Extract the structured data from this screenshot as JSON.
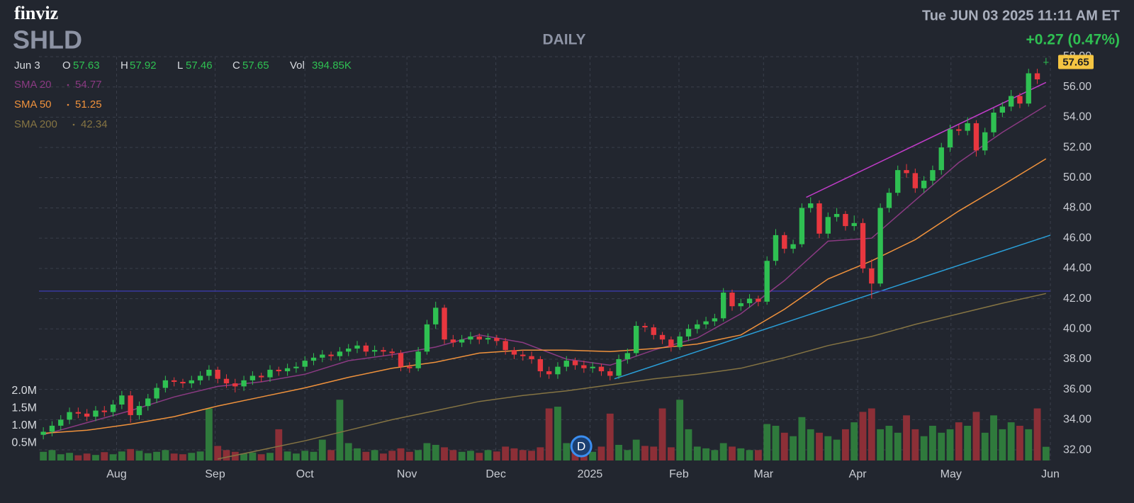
{
  "brand": "finviz",
  "timestamp": "Tue JUN 03 2025 11:11 AM ET",
  "chart_data": {
    "type": "candlestick",
    "ticker": "SHLD",
    "period": "DAILY",
    "change": "+0.27 (0.47%)",
    "ohlc_legend": {
      "date": "Jun 3",
      "open_label": "O",
      "open": 57.63,
      "high_label": "H",
      "high": 57.92,
      "low_label": "L",
      "low": 57.46,
      "close_label": "C",
      "close": 57.65,
      "volume_label": "Vol",
      "volume": "394.85K"
    },
    "up_color": "#2fc052",
    "down_color": "#e8373f",
    "volume_up_color": "#2f7a3c",
    "volume_down_color": "#8c2f37",
    "candles": [
      [
        33.0,
        33.5,
        32.7,
        33.2
      ],
      [
        33.2,
        33.9,
        32.9,
        33.6
      ],
      [
        33.6,
        34.3,
        33.3,
        34.0
      ],
      [
        34.0,
        34.8,
        33.7,
        34.5
      ],
      [
        34.5,
        34.8,
        34.1,
        34.4
      ],
      [
        34.4,
        34.7,
        33.9,
        34.2
      ],
      [
        34.2,
        34.9,
        33.9,
        34.6
      ],
      [
        34.6,
        34.9,
        34.2,
        34.5
      ],
      [
        34.5,
        35.3,
        34.2,
        35.0
      ],
      [
        35.0,
        35.9,
        34.7,
        35.6
      ],
      [
        35.6,
        35.9,
        33.8,
        34.3
      ],
      [
        34.3,
        35.2,
        34.0,
        34.9
      ],
      [
        34.9,
        35.7,
        34.6,
        35.4
      ],
      [
        35.4,
        36.4,
        35.1,
        36.1
      ],
      [
        36.1,
        36.9,
        35.8,
        36.6
      ],
      [
        36.6,
        36.8,
        36.2,
        36.5
      ],
      [
        36.5,
        36.7,
        36.1,
        36.4
      ],
      [
        36.4,
        36.9,
        36.1,
        36.6
      ],
      [
        36.6,
        37.2,
        36.3,
        36.9
      ],
      [
        36.9,
        37.6,
        36.6,
        37.3
      ],
      [
        37.3,
        37.5,
        36.4,
        36.7
      ],
      [
        36.7,
        37.0,
        36.1,
        36.4
      ],
      [
        36.4,
        36.7,
        35.8,
        36.2
      ],
      [
        36.2,
        36.9,
        35.9,
        36.6
      ],
      [
        36.6,
        37.2,
        36.3,
        36.9
      ],
      [
        36.9,
        37.1,
        36.5,
        36.8
      ],
      [
        36.8,
        37.6,
        36.5,
        37.3
      ],
      [
        37.3,
        37.5,
        36.9,
        37.2
      ],
      [
        37.2,
        37.7,
        36.9,
        37.4
      ],
      [
        37.4,
        37.8,
        37.1,
        37.5
      ],
      [
        37.5,
        38.2,
        37.2,
        37.9
      ],
      [
        37.9,
        38.4,
        37.6,
        38.1
      ],
      [
        38.1,
        38.6,
        37.8,
        38.3
      ],
      [
        38.3,
        38.5,
        37.9,
        38.2
      ],
      [
        38.2,
        38.8,
        37.9,
        38.5
      ],
      [
        38.5,
        39.0,
        38.2,
        38.7
      ],
      [
        38.7,
        39.2,
        38.4,
        38.9
      ],
      [
        38.9,
        39.1,
        38.2,
        38.5
      ],
      [
        38.5,
        38.9,
        38.2,
        38.6
      ],
      [
        38.6,
        38.8,
        38.2,
        38.5
      ],
      [
        38.5,
        38.7,
        38.1,
        38.4
      ],
      [
        38.4,
        38.6,
        37.2,
        37.5
      ],
      [
        37.5,
        37.8,
        37.1,
        37.4
      ],
      [
        37.4,
        38.8,
        37.2,
        38.5
      ],
      [
        38.5,
        40.6,
        38.3,
        40.3
      ],
      [
        40.3,
        41.8,
        40.0,
        41.4
      ],
      [
        41.4,
        41.6,
        39.0,
        39.3
      ],
      [
        39.3,
        39.6,
        38.8,
        39.1
      ],
      [
        39.1,
        39.6,
        38.8,
        39.3
      ],
      [
        39.3,
        39.8,
        39.0,
        39.5
      ],
      [
        39.5,
        39.7,
        39.0,
        39.3
      ],
      [
        39.3,
        39.7,
        39.0,
        39.4
      ],
      [
        39.4,
        39.6,
        38.9,
        39.2
      ],
      [
        39.2,
        39.4,
        38.3,
        38.6
      ],
      [
        38.6,
        38.8,
        38.0,
        38.3
      ],
      [
        38.3,
        38.6,
        37.9,
        38.2
      ],
      [
        38.2,
        38.5,
        37.7,
        38.0
      ],
      [
        38.0,
        38.2,
        36.8,
        37.2
      ],
      [
        37.2,
        37.5,
        36.7,
        37.0
      ],
      [
        37.0,
        37.8,
        36.7,
        37.5
      ],
      [
        37.5,
        38.2,
        37.2,
        37.9
      ],
      [
        37.9,
        38.1,
        37.3,
        37.6
      ],
      [
        37.6,
        37.9,
        37.1,
        37.4
      ],
      [
        37.4,
        37.8,
        37.1,
        37.5
      ],
      [
        37.5,
        37.7,
        36.9,
        37.2
      ],
      [
        37.2,
        37.4,
        36.6,
        36.9
      ],
      [
        36.9,
        38.3,
        36.7,
        38.0
      ],
      [
        38.0,
        38.7,
        37.7,
        38.4
      ],
      [
        38.4,
        40.5,
        38.2,
        40.2
      ],
      [
        40.2,
        40.4,
        39.8,
        40.1
      ],
      [
        40.1,
        40.3,
        39.3,
        39.6
      ],
      [
        39.6,
        39.8,
        39.0,
        39.3
      ],
      [
        39.3,
        39.5,
        38.5,
        38.8
      ],
      [
        38.8,
        39.8,
        38.6,
        39.5
      ],
      [
        39.5,
        40.3,
        39.2,
        40.0
      ],
      [
        40.0,
        40.6,
        39.7,
        40.3
      ],
      [
        40.3,
        40.8,
        40.0,
        40.5
      ],
      [
        40.5,
        41.0,
        40.2,
        40.7
      ],
      [
        40.7,
        42.7,
        40.5,
        42.4
      ],
      [
        42.4,
        42.6,
        41.2,
        41.5
      ],
      [
        41.5,
        42.0,
        41.2,
        41.7
      ],
      [
        41.7,
        42.3,
        41.4,
        42.0
      ],
      [
        42.0,
        42.2,
        41.5,
        41.8
      ],
      [
        41.8,
        44.8,
        41.6,
        44.5
      ],
      [
        44.5,
        46.6,
        44.2,
        46.2
      ],
      [
        46.2,
        46.4,
        45.0,
        45.3
      ],
      [
        45.3,
        45.9,
        45.0,
        45.6
      ],
      [
        45.6,
        48.3,
        45.4,
        48.0
      ],
      [
        48.0,
        48.7,
        47.7,
        48.3
      ],
      [
        48.3,
        48.5,
        46.0,
        46.3
      ],
      [
        46.3,
        47.7,
        46.0,
        47.4
      ],
      [
        47.4,
        48.0,
        47.1,
        47.6
      ],
      [
        47.6,
        47.8,
        46.5,
        46.8
      ],
      [
        46.8,
        47.5,
        46.5,
        47.0
      ],
      [
        47.0,
        47.3,
        43.7,
        44.0
      ],
      [
        44.0,
        44.6,
        42.0,
        43.0
      ],
      [
        43.0,
        48.3,
        42.8,
        48.0
      ],
      [
        48.0,
        49.3,
        47.7,
        49.0
      ],
      [
        49.0,
        50.8,
        48.8,
        50.5
      ],
      [
        50.5,
        50.9,
        50.0,
        50.3
      ],
      [
        50.3,
        50.6,
        49.0,
        49.3
      ],
      [
        49.3,
        50.1,
        49.0,
        49.8
      ],
      [
        49.8,
        50.8,
        49.5,
        50.5
      ],
      [
        50.5,
        52.3,
        50.2,
        52.0
      ],
      [
        52.0,
        53.5,
        51.7,
        53.2
      ],
      [
        53.2,
        53.5,
        52.8,
        53.1
      ],
      [
        53.1,
        54.0,
        52.8,
        53.6
      ],
      [
        53.6,
        53.8,
        51.4,
        51.8
      ],
      [
        51.8,
        53.3,
        51.5,
        53.0
      ],
      [
        53.0,
        54.6,
        52.7,
        54.3
      ],
      [
        54.3,
        55.0,
        54.0,
        54.7
      ],
      [
        54.7,
        55.8,
        54.4,
        55.4
      ],
      [
        55.4,
        55.6,
        54.6,
        54.9
      ],
      [
        54.9,
        57.2,
        54.7,
        56.9
      ],
      [
        56.9,
        57.2,
        56.2,
        56.5
      ],
      [
        57.63,
        57.92,
        57.46,
        57.65
      ]
    ],
    "volumes": [
      250000,
      300000,
      180000,
      220000,
      150000,
      200000,
      160000,
      240000,
      180000,
      260000,
      330000,
      280000,
      210000,
      250000,
      300000,
      200000,
      180000,
      220000,
      260000,
      1500000,
      420000,
      300000,
      250000,
      200000,
      230000,
      180000,
      220000,
      900000,
      260000,
      200000,
      280000,
      250000,
      600000,
      300000,
      1750000,
      500000,
      350000,
      250000,
      300000,
      200000,
      280000,
      350000,
      250000,
      300000,
      500000,
      450000,
      380000,
      300000,
      250000,
      280000,
      220000,
      300000,
      260000,
      400000,
      350000,
      300000,
      280000,
      380000,
      1500000,
      1550000,
      500000,
      350000,
      300000,
      250000,
      400000,
      1350000,
      450000,
      300000,
      600000,
      420000,
      400000,
      1500000,
      380000,
      1750000,
      900000,
      400000,
      350000,
      300000,
      500000,
      400000,
      350000,
      300000,
      300000,
      1050000,
      1000000,
      800000,
      700000,
      1250000,
      900000,
      800000,
      700000,
      600000,
      900000,
      1100000,
      1400000,
      1500000,
      900000,
      1000000,
      800000,
      1300000,
      900000,
      700000,
      1000000,
      800000,
      900000,
      1100000,
      1000000,
      1400000,
      800000,
      1300000,
      900000,
      1100000,
      1000000,
      900000,
      1500000,
      394850
    ],
    "xlim": [
      -0.5,
      115.5
    ],
    "xticks": [
      {
        "value": 8.4,
        "label": "Aug"
      },
      {
        "value": 19.7,
        "label": "Sep"
      },
      {
        "value": 30,
        "label": "Oct"
      },
      {
        "value": 41.7,
        "label": "Nov"
      },
      {
        "value": 51.9,
        "label": "Dec"
      },
      {
        "value": 62.7,
        "label": "2025"
      },
      {
        "value": 72.9,
        "label": "Feb"
      },
      {
        "value": 82.6,
        "label": "Mar"
      },
      {
        "value": 93.4,
        "label": "Apr"
      },
      {
        "value": 104.1,
        "label": "May"
      },
      {
        "value": 115.5,
        "label": "Jun"
      }
    ],
    "ylim": [
      31.3,
      58.0
    ],
    "yticks": [
      {
        "value": 32,
        "label": "32.00"
      },
      {
        "value": 34,
        "label": "34.00"
      },
      {
        "value": 36,
        "label": "36.00"
      },
      {
        "value": 38,
        "label": "38.00"
      },
      {
        "value": 40,
        "label": "40.00"
      },
      {
        "value": 42,
        "label": "42.00"
      },
      {
        "value": 44,
        "label": "44.00"
      },
      {
        "value": 46,
        "label": "46.00"
      },
      {
        "value": 48,
        "label": "48.00"
      },
      {
        "value": 50,
        "label": "50.00"
      },
      {
        "value": 52,
        "label": "52.00"
      },
      {
        "value": 54,
        "label": "54.00"
      },
      {
        "value": 56,
        "label": "56.00"
      },
      {
        "value": 58,
        "label": "58.00"
      }
    ],
    "volume_ylim": [
      0,
      2000000
    ],
    "volume_ticks": [
      {
        "value": 500000,
        "label": "0.5M"
      },
      {
        "value": 1000000,
        "label": "1.0M"
      },
      {
        "value": 1500000,
        "label": "1.5M"
      },
      {
        "value": 2000000,
        "label": "2.0M"
      }
    ],
    "grid": true,
    "series": [
      {
        "name": "SMA 20",
        "color": "#8a3a82",
        "last": 54.77,
        "x": [
          0,
          5,
          10,
          15,
          20,
          25,
          30,
          35,
          40,
          45,
          50,
          55,
          60,
          65,
          70,
          75,
          80,
          85,
          90,
          95,
          100,
          105,
          110,
          115
        ],
        "values": [
          33.0,
          33.8,
          34.6,
          35.5,
          36.2,
          36.5,
          37.0,
          37.9,
          38.3,
          38.8,
          39.6,
          39.1,
          38.0,
          37.6,
          38.6,
          39.4,
          41.0,
          43.2,
          45.8,
          46.0,
          48.5,
          51.0,
          53.0,
          54.77
        ]
      },
      {
        "name": "SMA 50",
        "color": "#f0923c",
        "last": 51.25,
        "x": [
          0,
          5,
          10,
          15,
          20,
          25,
          30,
          35,
          40,
          45,
          50,
          55,
          60,
          65,
          70,
          75,
          80,
          85,
          90,
          95,
          100,
          105,
          110,
          115
        ],
        "values": [
          33.1,
          33.3,
          33.7,
          34.2,
          34.9,
          35.5,
          36.1,
          36.8,
          37.4,
          37.8,
          38.4,
          38.6,
          38.6,
          38.5,
          38.7,
          39.0,
          39.6,
          41.3,
          43.3,
          44.5,
          45.9,
          47.8,
          49.5,
          51.25
        ]
      },
      {
        "name": "SMA 200",
        "color": "#857443",
        "last": 42.34,
        "x": [
          20,
          25,
          30,
          35,
          40,
          45,
          50,
          55,
          60,
          65,
          70,
          75,
          80,
          85,
          90,
          95,
          100,
          105,
          110,
          115
        ],
        "values": [
          31.4,
          32.0,
          32.6,
          33.3,
          34.0,
          34.6,
          35.2,
          35.6,
          35.9,
          36.3,
          36.7,
          37.0,
          37.4,
          38.1,
          38.9,
          39.5,
          40.3,
          41.0,
          41.7,
          42.34
        ]
      }
    ],
    "trendlines": [
      {
        "color": "#c03cc8",
        "x": [
          87.5,
          115
        ],
        "values": [
          48.7,
          56.3
        ]
      },
      {
        "color": "#2a9fd8",
        "x": [
          65.5,
          115.5
        ],
        "values": [
          36.7,
          46.2
        ]
      },
      {
        "color": "#3a3aa0",
        "x": [
          -0.5,
          115.5
        ],
        "values": [
          42.5,
          42.5
        ]
      }
    ],
    "events": [
      {
        "label": "D",
        "x": 61.7
      }
    ]
  }
}
